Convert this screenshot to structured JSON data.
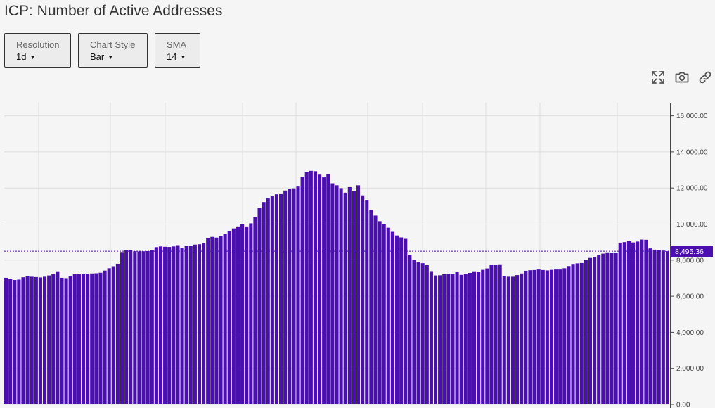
{
  "header": {
    "title": "ICP: Number of Active Addresses"
  },
  "controls": {
    "resolution": {
      "label": "Resolution",
      "value": "1d"
    },
    "chart_style": {
      "label": "Chart Style",
      "value": "Bar"
    },
    "sma": {
      "label": "SMA",
      "value": "14"
    }
  },
  "toolbar": {
    "icons": [
      "fullscreen-icon",
      "camera-icon",
      "link-icon"
    ]
  },
  "colors": {
    "bar": "#4b0fb0",
    "background": "#f5f5f5",
    "grid": "#dedede",
    "price_line": "#4b0fb0"
  },
  "chart_data": {
    "type": "bar",
    "title": "ICP: Number of Active Addresses",
    "ylim": [
      0,
      16600
    ],
    "y_ticks": [
      "0.00",
      "2,000.00",
      "4,000.00",
      "6,000.00",
      "8,000.00",
      "10,000.00",
      "12,000.00",
      "14,000.00",
      "16,000.00"
    ],
    "y_tick_values": [
      0,
      2000,
      4000,
      6000,
      8000,
      10000,
      12000,
      14000,
      16000
    ],
    "last_value": 8495.36,
    "last_value_label": "8,495.36",
    "grid": true,
    "values": [
      7020,
      6950,
      6900,
      6920,
      7050,
      7100,
      7080,
      7060,
      7040,
      7080,
      7150,
      7250,
      7380,
      7020,
      7000,
      7100,
      7250,
      7250,
      7220,
      7230,
      7260,
      7270,
      7300,
      7420,
      7550,
      7660,
      7800,
      8450,
      8560,
      8560,
      8490,
      8480,
      8490,
      8500,
      8560,
      8720,
      8760,
      8740,
      8730,
      8760,
      8830,
      8660,
      8780,
      8790,
      8860,
      8880,
      8940,
      9240,
      9290,
      9250,
      9320,
      9450,
      9620,
      9760,
      9870,
      9990,
      9870,
      10040,
      10400,
      10910,
      11220,
      11420,
      11560,
      11650,
      11660,
      11860,
      11960,
      11980,
      12080,
      12620,
      12880,
      12950,
      12930,
      12740,
      12590,
      12750,
      12260,
      12150,
      11990,
      11740,
      12050,
      11850,
      12150,
      11590,
      11340,
      10790,
      10470,
      10160,
      9980,
      9800,
      9570,
      9370,
      9260,
      9180,
      8290,
      8000,
      7910,
      7830,
      7720,
      7390,
      7150,
      7160,
      7230,
      7250,
      7240,
      7340,
      7180,
      7230,
      7290,
      7380,
      7350,
      7460,
      7540,
      7720,
      7720,
      7730,
      7100,
      7080,
      7080,
      7170,
      7260,
      7410,
      7440,
      7450,
      7480,
      7450,
      7430,
      7460,
      7480,
      7480,
      7550,
      7670,
      7750,
      7820,
      7840,
      8000,
      8120,
      8180,
      8280,
      8360,
      8430,
      8420,
      8420,
      8970,
      9000,
      9080,
      8980,
      9030,
      9140,
      9130,
      8650,
      8580,
      8550,
      8530,
      8495
    ]
  }
}
